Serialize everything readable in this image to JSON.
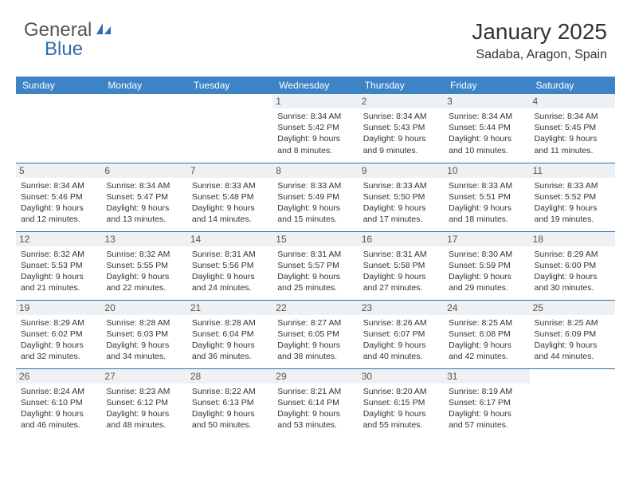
{
  "logo": {
    "general": "General",
    "blue": "Blue"
  },
  "title": "January 2025",
  "location": "Sadaba, Aragon, Spain",
  "colors": {
    "header_bg": "#3d84c6",
    "header_text": "#ffffff",
    "row_divider": "#2f6fb0",
    "daynum_bg": "#eef1f3",
    "logo_blue": "#2f6fb0",
    "body_bg": "#ffffff",
    "text_color": "#333333"
  },
  "typography": {
    "title_fontsize": 28,
    "location_fontsize": 16,
    "header_fontsize": 12,
    "day_text_fontsize": 10.5,
    "font_family": "Arial"
  },
  "day_headers": [
    "Sunday",
    "Monday",
    "Tuesday",
    "Wednesday",
    "Thursday",
    "Friday",
    "Saturday"
  ],
  "weeks": [
    [
      {
        "empty": true
      },
      {
        "empty": true
      },
      {
        "empty": true
      },
      {
        "num": "1",
        "sunrise": "8:34 AM",
        "sunset": "5:42 PM",
        "daylight": "9 hours and 8 minutes."
      },
      {
        "num": "2",
        "sunrise": "8:34 AM",
        "sunset": "5:43 PM",
        "daylight": "9 hours and 9 minutes."
      },
      {
        "num": "3",
        "sunrise": "8:34 AM",
        "sunset": "5:44 PM",
        "daylight": "9 hours and 10 minutes."
      },
      {
        "num": "4",
        "sunrise": "8:34 AM",
        "sunset": "5:45 PM",
        "daylight": "9 hours and 11 minutes."
      }
    ],
    [
      {
        "num": "5",
        "sunrise": "8:34 AM",
        "sunset": "5:46 PM",
        "daylight": "9 hours and 12 minutes."
      },
      {
        "num": "6",
        "sunrise": "8:34 AM",
        "sunset": "5:47 PM",
        "daylight": "9 hours and 13 minutes."
      },
      {
        "num": "7",
        "sunrise": "8:33 AM",
        "sunset": "5:48 PM",
        "daylight": "9 hours and 14 minutes."
      },
      {
        "num": "8",
        "sunrise": "8:33 AM",
        "sunset": "5:49 PM",
        "daylight": "9 hours and 15 minutes."
      },
      {
        "num": "9",
        "sunrise": "8:33 AM",
        "sunset": "5:50 PM",
        "daylight": "9 hours and 17 minutes."
      },
      {
        "num": "10",
        "sunrise": "8:33 AM",
        "sunset": "5:51 PM",
        "daylight": "9 hours and 18 minutes."
      },
      {
        "num": "11",
        "sunrise": "8:33 AM",
        "sunset": "5:52 PM",
        "daylight": "9 hours and 19 minutes."
      }
    ],
    [
      {
        "num": "12",
        "sunrise": "8:32 AM",
        "sunset": "5:53 PM",
        "daylight": "9 hours and 21 minutes."
      },
      {
        "num": "13",
        "sunrise": "8:32 AM",
        "sunset": "5:55 PM",
        "daylight": "9 hours and 22 minutes."
      },
      {
        "num": "14",
        "sunrise": "8:31 AM",
        "sunset": "5:56 PM",
        "daylight": "9 hours and 24 minutes."
      },
      {
        "num": "15",
        "sunrise": "8:31 AM",
        "sunset": "5:57 PM",
        "daylight": "9 hours and 25 minutes."
      },
      {
        "num": "16",
        "sunrise": "8:31 AM",
        "sunset": "5:58 PM",
        "daylight": "9 hours and 27 minutes."
      },
      {
        "num": "17",
        "sunrise": "8:30 AM",
        "sunset": "5:59 PM",
        "daylight": "9 hours and 29 minutes."
      },
      {
        "num": "18",
        "sunrise": "8:29 AM",
        "sunset": "6:00 PM",
        "daylight": "9 hours and 30 minutes."
      }
    ],
    [
      {
        "num": "19",
        "sunrise": "8:29 AM",
        "sunset": "6:02 PM",
        "daylight": "9 hours and 32 minutes."
      },
      {
        "num": "20",
        "sunrise": "8:28 AM",
        "sunset": "6:03 PM",
        "daylight": "9 hours and 34 minutes."
      },
      {
        "num": "21",
        "sunrise": "8:28 AM",
        "sunset": "6:04 PM",
        "daylight": "9 hours and 36 minutes."
      },
      {
        "num": "22",
        "sunrise": "8:27 AM",
        "sunset": "6:05 PM",
        "daylight": "9 hours and 38 minutes."
      },
      {
        "num": "23",
        "sunrise": "8:26 AM",
        "sunset": "6:07 PM",
        "daylight": "9 hours and 40 minutes."
      },
      {
        "num": "24",
        "sunrise": "8:25 AM",
        "sunset": "6:08 PM",
        "daylight": "9 hours and 42 minutes."
      },
      {
        "num": "25",
        "sunrise": "8:25 AM",
        "sunset": "6:09 PM",
        "daylight": "9 hours and 44 minutes."
      }
    ],
    [
      {
        "num": "26",
        "sunrise": "8:24 AM",
        "sunset": "6:10 PM",
        "daylight": "9 hours and 46 minutes."
      },
      {
        "num": "27",
        "sunrise": "8:23 AM",
        "sunset": "6:12 PM",
        "daylight": "9 hours and 48 minutes."
      },
      {
        "num": "28",
        "sunrise": "8:22 AM",
        "sunset": "6:13 PM",
        "daylight": "9 hours and 50 minutes."
      },
      {
        "num": "29",
        "sunrise": "8:21 AM",
        "sunset": "6:14 PM",
        "daylight": "9 hours and 53 minutes."
      },
      {
        "num": "30",
        "sunrise": "8:20 AM",
        "sunset": "6:15 PM",
        "daylight": "9 hours and 55 minutes."
      },
      {
        "num": "31",
        "sunrise": "8:19 AM",
        "sunset": "6:17 PM",
        "daylight": "9 hours and 57 minutes."
      },
      {
        "empty": true
      }
    ]
  ],
  "labels": {
    "sunrise_prefix": "Sunrise: ",
    "sunset_prefix": "Sunset: ",
    "daylight_prefix": "Daylight: "
  }
}
